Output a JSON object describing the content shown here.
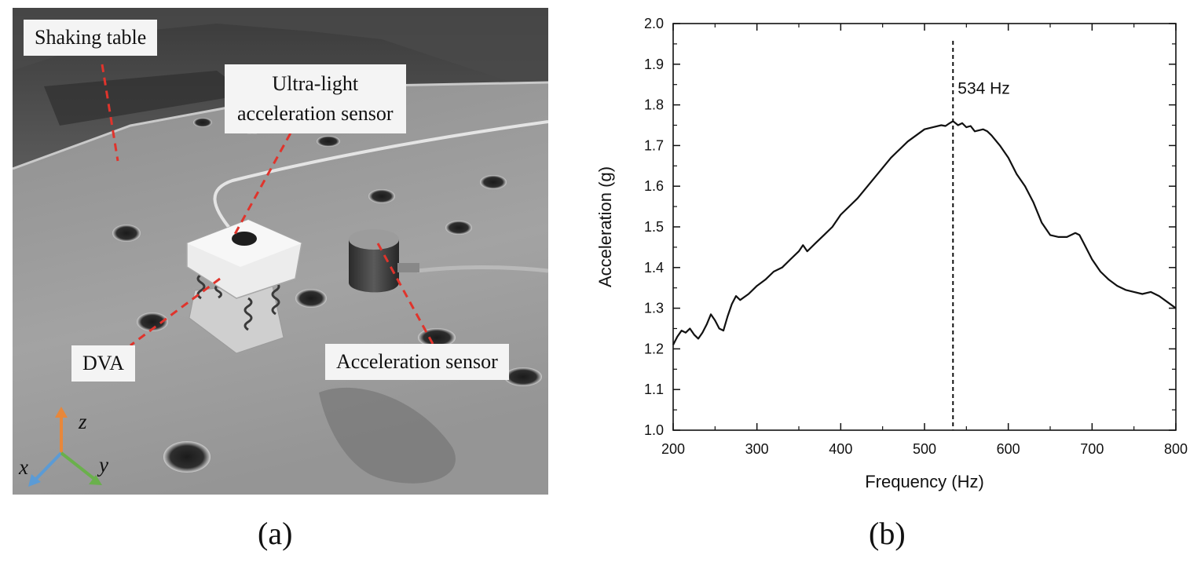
{
  "figure": {
    "panel_a_caption": "(a)",
    "panel_b_caption": "(b)"
  },
  "photo": {
    "labels": {
      "shaking_table": "Shaking table",
      "ultra_light_line1": "Ultra-light",
      "ultra_light_line2": "acceleration sensor",
      "dva": "DVA",
      "acceleration_sensor": "Acceleration sensor"
    },
    "axes": {
      "z": "z",
      "x": "x",
      "y": "y"
    },
    "colors": {
      "leader_line": "#e0342c",
      "axis_z": "#e8873a",
      "axis_x": "#5b9bd5",
      "axis_y": "#6ab04c"
    }
  },
  "chart_data": {
    "type": "line",
    "xlabel": "Frequency (Hz)",
    "ylabel": "Acceleration (g)",
    "xlim": [
      200,
      800
    ],
    "ylim": [
      1.0,
      2.0
    ],
    "xticks": [
      200,
      300,
      400,
      500,
      600,
      700,
      800
    ],
    "yticks": [
      1.0,
      1.1,
      1.2,
      1.3,
      1.4,
      1.5,
      1.6,
      1.7,
      1.8,
      1.9,
      2.0
    ],
    "grid": false,
    "annotation": {
      "text": "534 Hz",
      "x": 534
    },
    "series": [
      {
        "color": "#111111",
        "x": [
          200,
          205,
          210,
          215,
          220,
          225,
          230,
          235,
          240,
          245,
          250,
          255,
          260,
          265,
          270,
          275,
          280,
          290,
          300,
          310,
          320,
          330,
          340,
          350,
          355,
          360,
          370,
          380,
          390,
          400,
          420,
          440,
          460,
          480,
          500,
          510,
          520,
          525,
          530,
          534,
          540,
          545,
          550,
          555,
          560,
          570,
          575,
          580,
          590,
          600,
          610,
          620,
          630,
          640,
          650,
          660,
          670,
          680,
          685,
          690,
          700,
          710,
          720,
          730,
          740,
          750,
          760,
          770,
          780,
          790,
          800
        ],
        "y": [
          1.21,
          1.23,
          1.245,
          1.24,
          1.25,
          1.235,
          1.225,
          1.24,
          1.26,
          1.285,
          1.27,
          1.25,
          1.245,
          1.28,
          1.31,
          1.33,
          1.32,
          1.335,
          1.355,
          1.37,
          1.39,
          1.4,
          1.42,
          1.44,
          1.455,
          1.44,
          1.46,
          1.48,
          1.5,
          1.53,
          1.57,
          1.62,
          1.67,
          1.71,
          1.74,
          1.745,
          1.75,
          1.748,
          1.755,
          1.76,
          1.75,
          1.755,
          1.745,
          1.748,
          1.735,
          1.74,
          1.735,
          1.725,
          1.7,
          1.67,
          1.63,
          1.6,
          1.56,
          1.51,
          1.48,
          1.475,
          1.475,
          1.485,
          1.48,
          1.46,
          1.42,
          1.39,
          1.37,
          1.355,
          1.345,
          1.34,
          1.335,
          1.34,
          1.33,
          1.315,
          1.3
        ]
      }
    ]
  }
}
